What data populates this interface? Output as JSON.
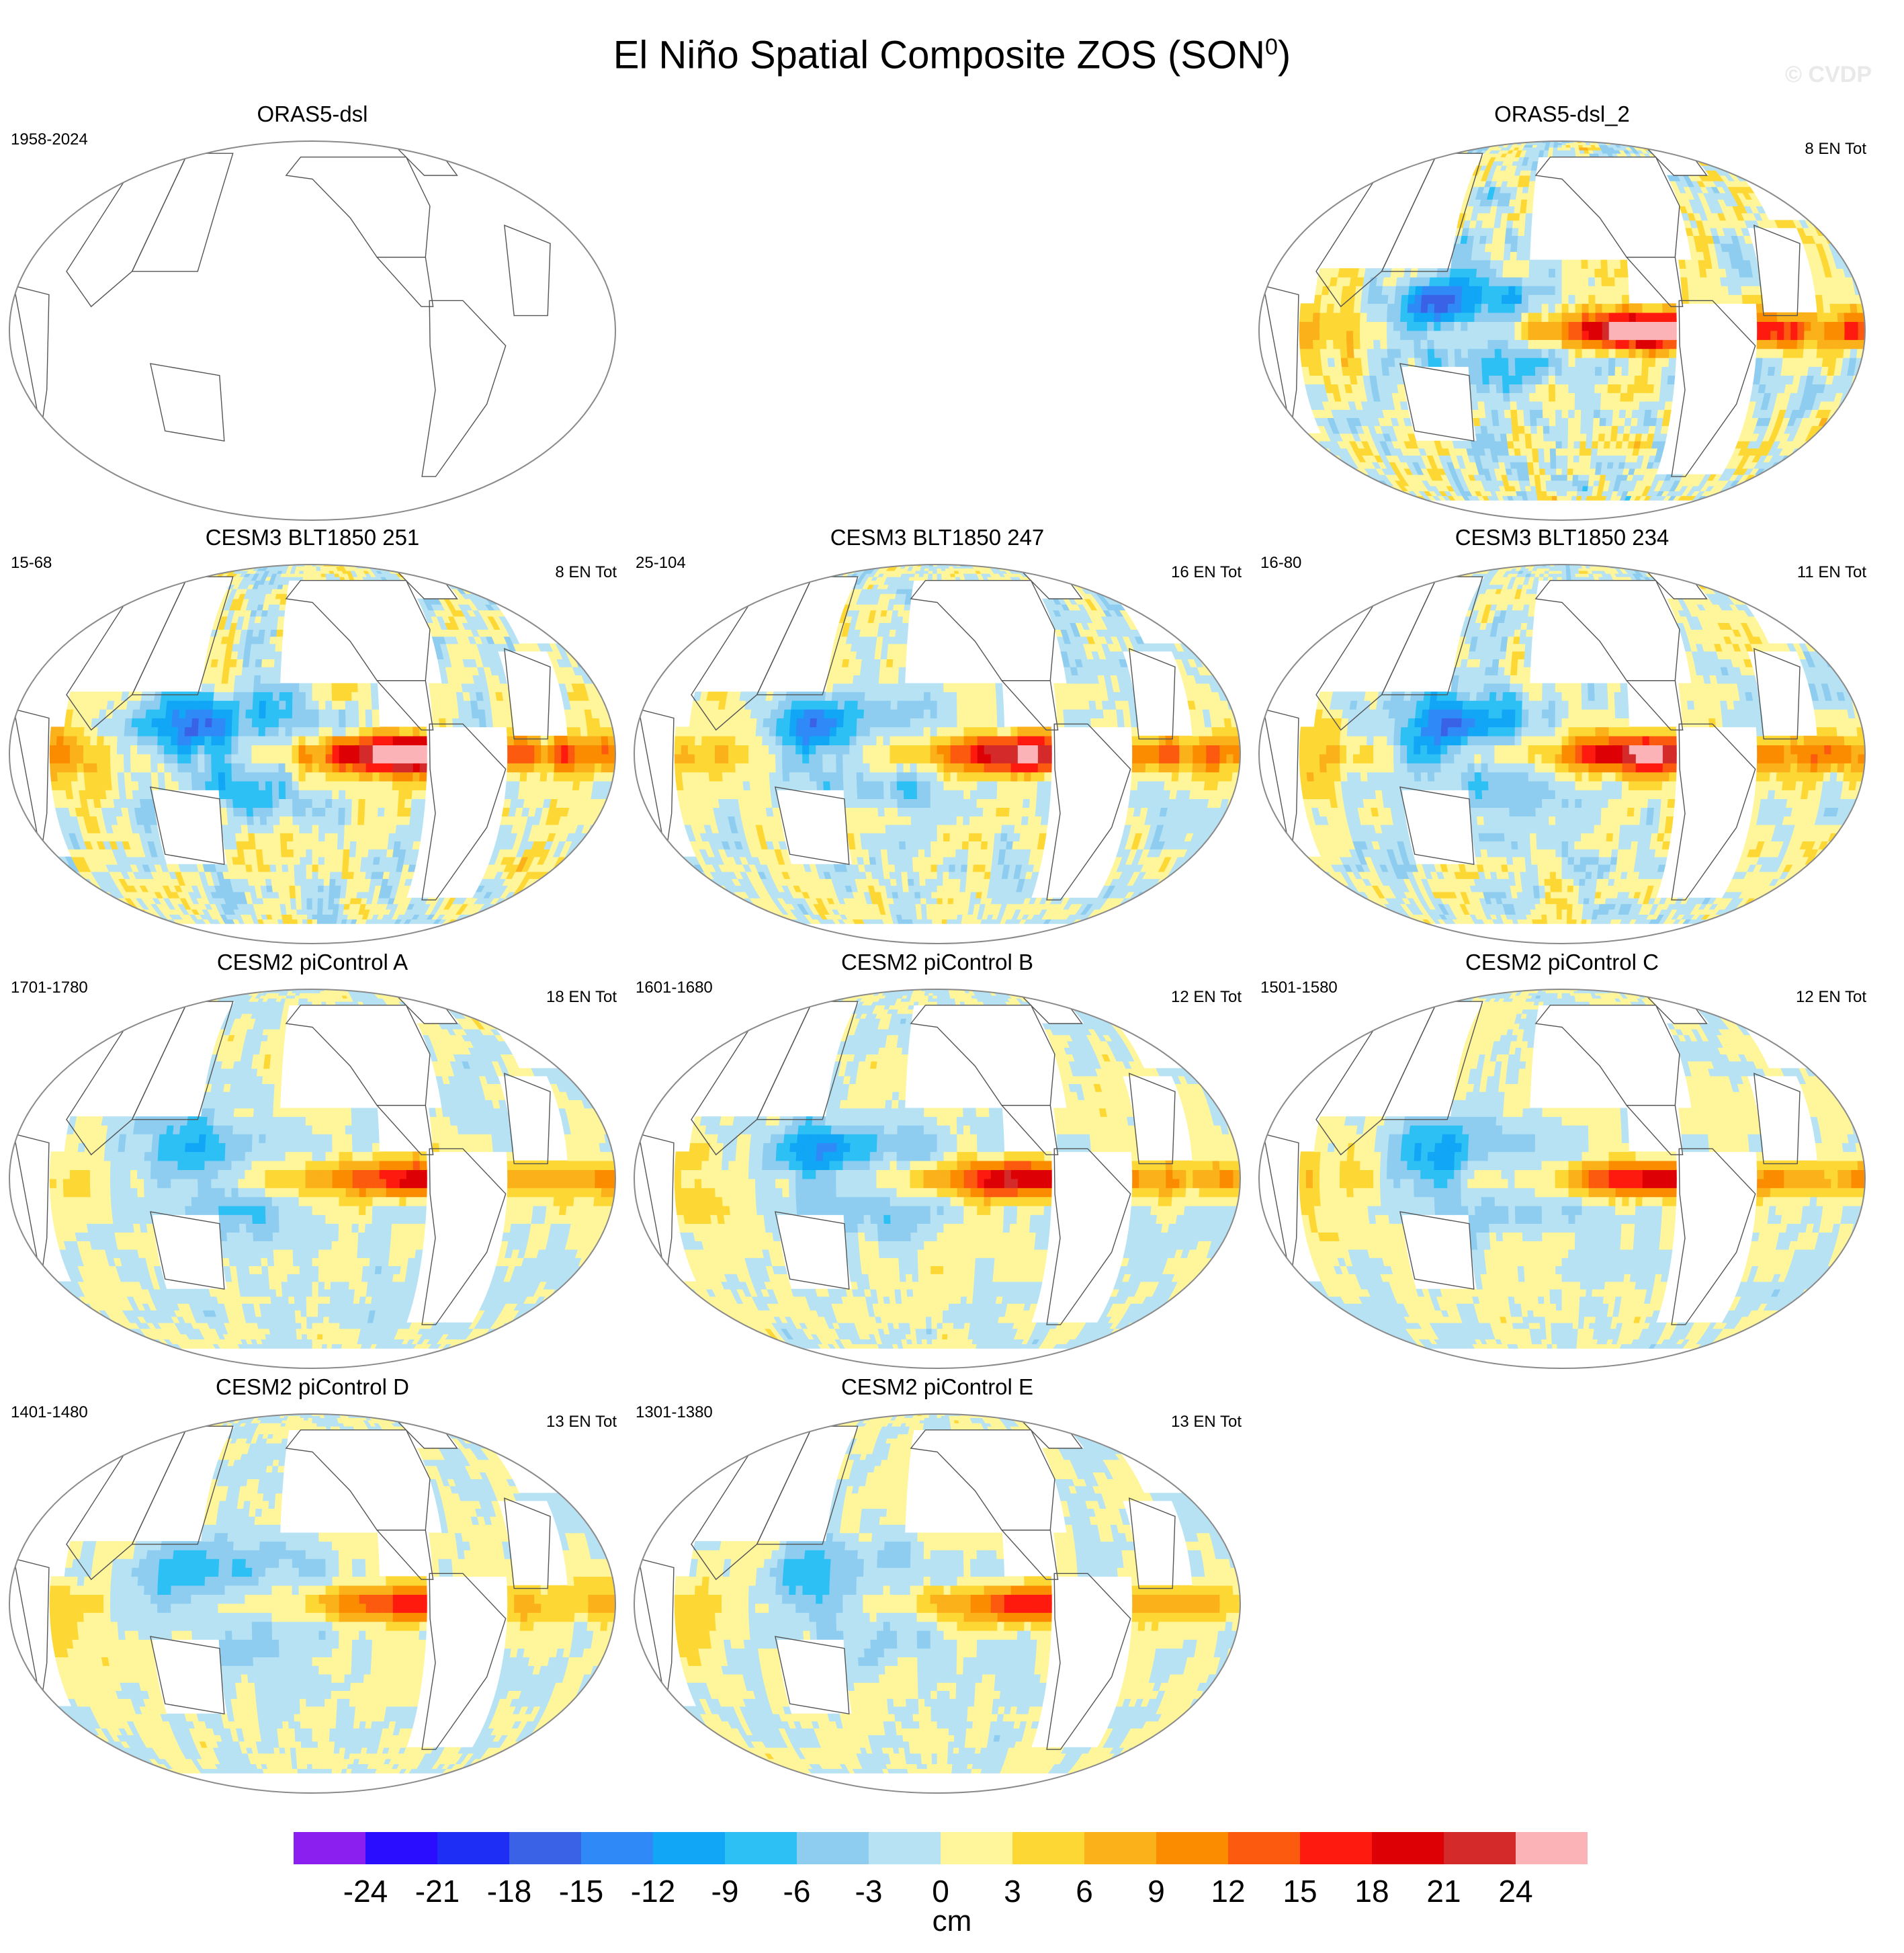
{
  "title": "El Niño Spatial Composite ZOS (SON",
  "title_superscript": "0",
  "title_close": ")",
  "watermark": "© CVDP",
  "chart_data": {
    "type": "heatmap",
    "map_projection": "robinson-pacific-centered",
    "panels": [
      {
        "title": "ORAS5-dsl",
        "years": "1958-2024",
        "count": "",
        "empty": true
      },
      {
        "title": "ORAS5-dsl_2",
        "years": "",
        "count": "8 EN Tot",
        "amp": 20,
        "noise": 0.9
      },
      {
        "title": "CESM3 BLT1850 251",
        "years": "15-68",
        "count": "8 EN Tot",
        "amp": 21,
        "noise": 0.75
      },
      {
        "title": "CESM3 BLT1850 247",
        "years": "25-104",
        "count": "16 EN Tot",
        "amp": 17,
        "noise": 0.55
      },
      {
        "title": "CESM3 BLT1850 234",
        "years": "16-80",
        "count": "11 EN Tot",
        "amp": 18,
        "noise": 0.6
      },
      {
        "title": "CESM2 piControl A",
        "years": "1701-1780",
        "count": "18 EN Tot",
        "amp": 13,
        "noise": 0.3
      },
      {
        "title": "CESM2 piControl B",
        "years": "1601-1680",
        "count": "12 EN Tot",
        "amp": 14,
        "noise": 0.3
      },
      {
        "title": "CESM2 piControl C",
        "years": "1501-1580",
        "count": "12 EN Tot",
        "amp": 13,
        "noise": 0.3
      },
      {
        "title": "CESM2 piControl D",
        "years": "1401-1480",
        "count": "13 EN Tot",
        "amp": 11,
        "noise": 0.25
      },
      {
        "title": "CESM2 piControl E",
        "years": "1301-1380",
        "count": "13 EN Tot",
        "amp": 11,
        "noise": 0.25
      }
    ],
    "colorbar": {
      "tick_labels": [
        "-24",
        "-21",
        "-18",
        "-15",
        "-12",
        "-9",
        "-6",
        "-3",
        "0",
        "3",
        "6",
        "9",
        "12",
        "15",
        "18",
        "21",
        "24"
      ],
      "colors": [
        "#8a1ff0",
        "#2a0dff",
        "#1e2ef5",
        "#3a62e6",
        "#2f8af7",
        "#11a6f6",
        "#2dc0f5",
        "#8fcdf0",
        "#b6e2f4",
        "#fff59a",
        "#fdd835",
        "#fbb11a",
        "#fb8c00",
        "#fb5a0f",
        "#ff1a0f",
        "#dd0005",
        "#d42a2a",
        "#fbb3b8"
      ],
      "units": "cm"
    }
  }
}
